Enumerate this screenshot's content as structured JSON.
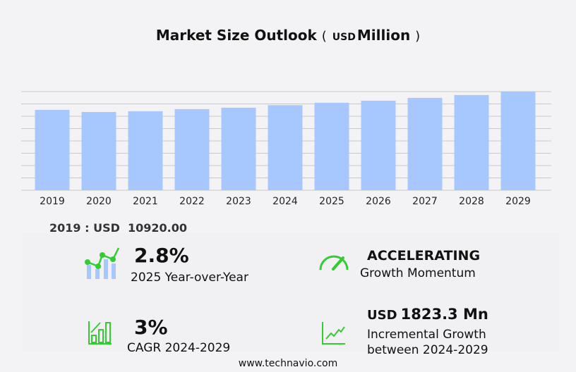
{
  "title": {
    "main": "Market Size Outlook",
    "open": "(",
    "unit": "USD",
    "unit_label": "Million",
    "close": ")"
  },
  "chart_data": {
    "type": "bar",
    "title": "Market Size Outlook (USD Million)",
    "categories": [
      "2019",
      "2020",
      "2021",
      "2022",
      "2023",
      "2024",
      "2025",
      "2026",
      "2027",
      "2028",
      "2029"
    ],
    "values": [
      10920,
      10632,
      10728,
      11017,
      11209,
      11560,
      11884,
      12166,
      12549,
      12932,
      13383
    ],
    "ylim": [
      0,
      13400
    ],
    "grid": true,
    "bar_color": "#a7c7ff"
  },
  "first_year": {
    "label": "2019 : USD",
    "value": "10920.00"
  },
  "stats": {
    "yoy": {
      "value": "2.8%",
      "label": "2025 Year-over-Year"
    },
    "momentum": {
      "value": "ACCELERATING",
      "label": "Growth Momentum"
    },
    "cagr": {
      "value": "3%",
      "label": "CAGR 2024-2029"
    },
    "incremental": {
      "unit": "USD",
      "value": "1823.3 Mn",
      "label1": "Incremental Growth",
      "label2": "between 2024-2029"
    }
  },
  "colors": {
    "accent": "#33cc33",
    "bar": "#a7c7ff"
  },
  "footer": "www.technavio.com"
}
